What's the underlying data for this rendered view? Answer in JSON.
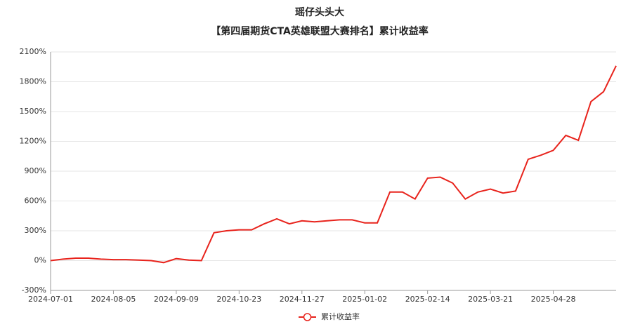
{
  "chart_data": {
    "type": "line",
    "title": "瑶仔头头大",
    "subtitle": "【第四届期货CTA英雄联盟大赛排名】累计收益率",
    "categories": [
      "2024-07-01",
      null,
      null,
      null,
      null,
      "2024-08-05",
      null,
      null,
      null,
      null,
      "2024-09-09",
      null,
      null,
      null,
      null,
      "2024-10-23",
      null,
      null,
      null,
      null,
      "2024-11-27",
      null,
      null,
      null,
      null,
      "2025-01-02",
      null,
      null,
      null,
      null,
      "2025-02-14",
      null,
      null,
      null,
      null,
      "2025-03-21",
      null,
      null,
      null,
      null,
      "2025-04-28",
      null,
      null,
      null,
      null,
      null
    ],
    "series": [
      {
        "name": "累计收益率",
        "color": "#e8231c",
        "values": [
          0,
          15,
          25,
          25,
          15,
          10,
          10,
          5,
          0,
          -20,
          20,
          5,
          0,
          280,
          300,
          310,
          310,
          370,
          420,
          370,
          400,
          390,
          400,
          410,
          410,
          380,
          380,
          690,
          690,
          620,
          830,
          840,
          780,
          620,
          690,
          720,
          680,
          700,
          1020,
          1060,
          1110,
          1260,
          1210,
          1600,
          1700,
          1960
        ]
      }
    ],
    "ylim": [
      -300,
      2100
    ],
    "yticks": [
      {
        "value": -300,
        "label": "-300%"
      },
      {
        "value": 0,
        "label": "0%"
      },
      {
        "value": 300,
        "label": "300%"
      },
      {
        "value": 600,
        "label": "600%"
      },
      {
        "value": 900,
        "label": "900%"
      },
      {
        "value": 1200,
        "label": "1200%"
      },
      {
        "value": 1500,
        "label": "1500%"
      },
      {
        "value": 1800,
        "label": "1800%"
      },
      {
        "value": 2100,
        "label": "2100%"
      }
    ],
    "grid": true
  }
}
